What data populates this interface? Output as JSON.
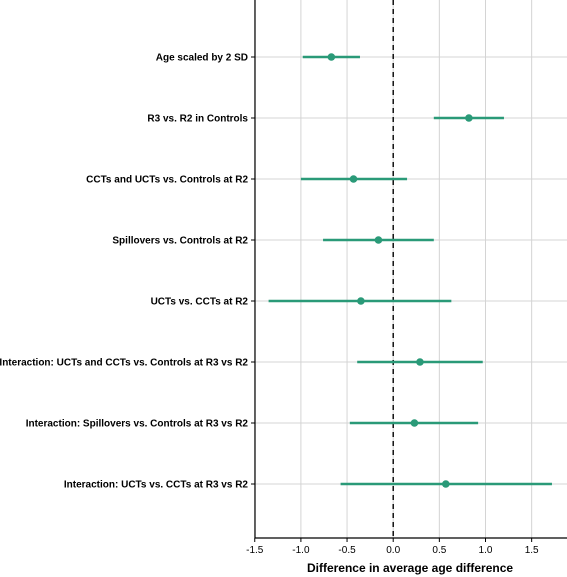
{
  "chart_data": {
    "type": "forest",
    "xlabel": "Difference in average age difference",
    "xlim": [
      -1.5,
      1.85
    ],
    "xticks": [
      -1.5,
      -1.0,
      -0.5,
      0.0,
      0.5,
      1.0,
      1.5
    ],
    "xtick_labels": [
      "-1.5",
      "-1.0",
      "-0.5",
      "0.0",
      "0.5",
      "1.0",
      "1.5"
    ],
    "reference_line": 0,
    "grid": "vertical and horizontal",
    "point_color": "#2a9a78",
    "rows": [
      {
        "label": "Age scaled by 2 SD",
        "estimate": -0.67,
        "lower": -0.98,
        "upper": -0.36
      },
      {
        "label": "R3 vs. R2 in Controls",
        "estimate": 0.82,
        "lower": 0.44,
        "upper": 1.2
      },
      {
        "label": "CCTs and UCTs vs. Controls at R2",
        "estimate": -0.43,
        "lower": -1.0,
        "upper": 0.15
      },
      {
        "label": "Spillovers vs. Controls at R2",
        "estimate": -0.16,
        "lower": -0.76,
        "upper": 0.44
      },
      {
        "label": "UCTs vs. CCTs at R2",
        "estimate": -0.35,
        "lower": -1.35,
        "upper": 0.63
      },
      {
        "label": "Interaction: UCTs and CCTs vs. Controls at R3 vs R2",
        "estimate": 0.29,
        "lower": -0.39,
        "upper": 0.97
      },
      {
        "label": "Interaction: Spillovers vs. Controls at R3 vs R2",
        "estimate": 0.23,
        "lower": -0.47,
        "upper": 0.92
      },
      {
        "label": "Interaction: UCTs vs. CCTs at R3 vs R2",
        "estimate": 0.57,
        "lower": -0.57,
        "upper": 1.72
      }
    ]
  }
}
